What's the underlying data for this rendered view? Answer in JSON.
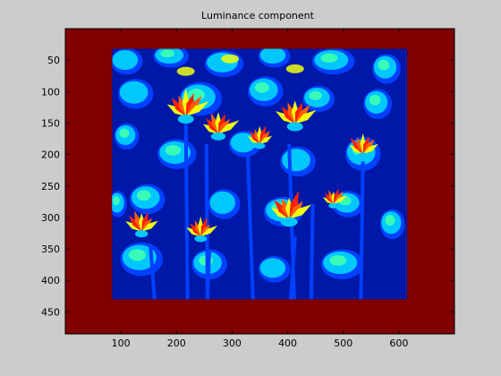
{
  "chart_data": {
    "type": "heatmap",
    "title": "Luminance component",
    "xlabel": "",
    "ylabel": "",
    "xlim": [
      0,
      700
    ],
    "ylim": [
      0,
      485
    ],
    "y_reversed": true,
    "x_ticks": [
      100,
      200,
      300,
      400,
      500,
      600
    ],
    "y_ticks": [
      50,
      100,
      150,
      200,
      250,
      300,
      350,
      400,
      450
    ],
    "colormap": "jet",
    "padding_color": "#800000",
    "image_extent": {
      "x": [
        84,
        615
      ],
      "y": [
        32,
        430
      ]
    },
    "grid": false
  },
  "colors": {
    "figure_bg": "#cccccc",
    "axes_bg": "#ffffff",
    "jet_dark_blue": "#0018a8",
    "jet_blue": "#0040ff",
    "jet_cyan": "#00c8ff",
    "jet_green": "#40ffb0",
    "jet_yellow": "#f0ff10",
    "jet_red": "#ff2000"
  }
}
